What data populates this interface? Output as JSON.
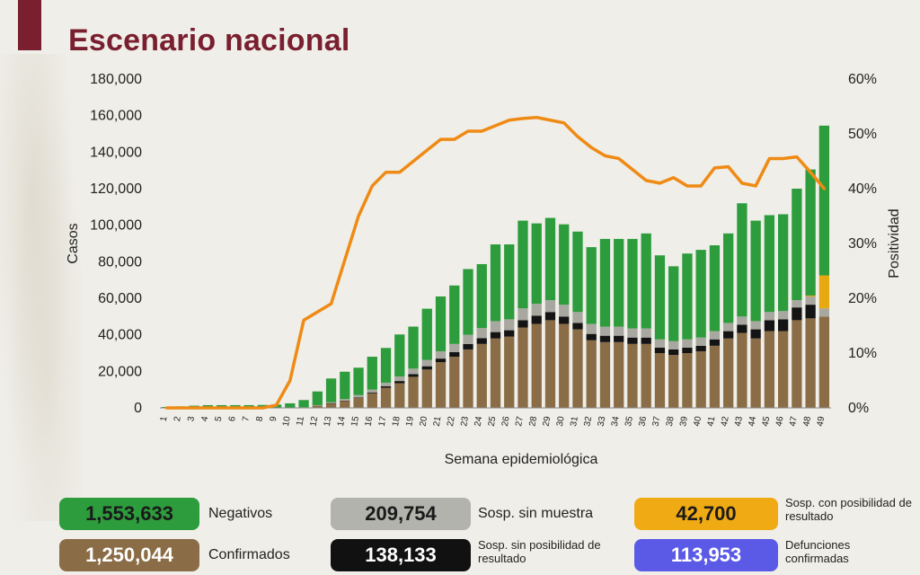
{
  "title": "Escenario nacional",
  "chart_data": {
    "type": "bar",
    "stacked": true,
    "xlabel": "Semana epidemiológica",
    "ylabel": "Casos",
    "y2label": "Positividad",
    "ylim": [
      0,
      180000
    ],
    "y2lim": [
      0,
      60
    ],
    "yticks": [
      "0",
      "20,000",
      "40,000",
      "60,000",
      "80,000",
      "100,000",
      "120,000",
      "140,000",
      "160,000",
      "180,000"
    ],
    "y2ticks": [
      "0%",
      "10%",
      "20%",
      "30%",
      "40%",
      "50%",
      "60%"
    ],
    "categories": [
      "1",
      "2",
      "3",
      "4",
      "5",
      "6",
      "7",
      "8",
      "9",
      "10",
      "11",
      "12",
      "13",
      "14",
      "15",
      "16",
      "17",
      "18",
      "19",
      "20",
      "21",
      "22",
      "23",
      "24",
      "25",
      "26",
      "27",
      "28",
      "29",
      "30",
      "31",
      "32",
      "33",
      "34",
      "35",
      "36",
      "37",
      "38",
      "39",
      "40",
      "41",
      "42",
      "43",
      "44",
      "45",
      "46",
      "47",
      "48",
      "49"
    ],
    "series": [
      {
        "name": "Confirmados",
        "color": "#8a6d46",
        "values": [
          0,
          0,
          0,
          0,
          0,
          0,
          0,
          0,
          0,
          0,
          200,
          1200,
          2500,
          3800,
          5500,
          8000,
          11000,
          13500,
          17000,
          21000,
          25000,
          28000,
          32000,
          35000,
          38000,
          39000,
          44000,
          46000,
          48000,
          46000,
          43000,
          37000,
          36000,
          36000,
          35000,
          35000,
          30000,
          29000,
          30000,
          31000,
          34000,
          38000,
          41000,
          38000,
          42000,
          42000,
          48000,
          49000,
          50000
        ]
      },
      {
        "name": "Sosp. sin posibilidad de resultado",
        "color": "#141414",
        "values": [
          0,
          0,
          0,
          0,
          0,
          0,
          0,
          0,
          0,
          0,
          0,
          0,
          100,
          200,
          300,
          500,
          800,
          1200,
          1500,
          1800,
          2000,
          2500,
          3000,
          3200,
          3500,
          3500,
          4000,
          4500,
          4500,
          4000,
          3500,
          3500,
          3500,
          3500,
          3500,
          3500,
          3000,
          3000,
          3000,
          3000,
          3500,
          4000,
          4500,
          5000,
          6000,
          6500,
          7000,
          7500,
          0
        ]
      },
      {
        "name": "Sosp. sin muestra",
        "color": "#a8a8a0",
        "values": [
          0,
          0,
          0,
          0,
          0,
          0,
          0,
          0,
          0,
          0,
          100,
          300,
          500,
          800,
          1200,
          1500,
          2000,
          2500,
          3000,
          3500,
          4000,
          4500,
          5000,
          5500,
          6000,
          6000,
          6500,
          6500,
          6500,
          6500,
          6000,
          5500,
          5000,
          5000,
          5000,
          5000,
          4500,
          4500,
          4500,
          4500,
          4500,
          4500,
          4500,
          4500,
          4500,
          4500,
          4000,
          4500,
          4500
        ]
      },
      {
        "name": "Sosp. con posibilidad de resultado",
        "color": "#e8a810",
        "values": [
          0,
          0,
          0,
          0,
          0,
          0,
          0,
          0,
          0,
          0,
          0,
          0,
          0,
          0,
          0,
          0,
          0,
          0,
          0,
          0,
          0,
          0,
          0,
          0,
          0,
          0,
          0,
          0,
          0,
          0,
          0,
          0,
          0,
          0,
          0,
          0,
          0,
          0,
          0,
          0,
          0,
          0,
          0,
          0,
          0,
          0,
          0,
          500,
          18000
        ]
      },
      {
        "name": "Negativos",
        "color": "#2d9c3c",
        "values": [
          500,
          800,
          1200,
          1500,
          1500,
          1500,
          1500,
          1600,
          1800,
          2500,
          4000,
          7500,
          13000,
          15000,
          15000,
          18000,
          19000,
          23000,
          23000,
          28000,
          30000,
          32000,
          36000,
          35000,
          42000,
          41000,
          48000,
          44000,
          45000,
          44000,
          44000,
          42000,
          48000,
          48000,
          49000,
          52000,
          46000,
          41000,
          47000,
          48000,
          47000,
          49000,
          62000,
          55000,
          53000,
          53000,
          61000,
          69000,
          82000
        ]
      }
    ],
    "line": {
      "name": "Positividad",
      "color": "#ef8a14",
      "values": [
        0,
        0,
        0,
        0,
        0,
        0,
        0,
        0,
        0.5,
        5,
        16,
        17.5,
        19,
        27,
        35,
        40.5,
        43,
        43,
        45,
        47,
        49,
        49,
        50.5,
        50.5,
        51.5,
        52.5,
        52.8,
        53,
        52.5,
        52,
        49.5,
        47.5,
        46,
        45.5,
        43.5,
        41.5,
        41,
        42,
        40.5,
        40.5,
        43.8,
        44,
        41,
        40.5,
        45.5,
        45.5,
        45.8,
        43,
        40
      ]
    }
  },
  "legend": [
    {
      "value": "1,553,633",
      "label": "Negativos",
      "color": "#2d9c3c",
      "text": "dark"
    },
    {
      "value": "209,754",
      "label": "Sosp. sin muestra",
      "color": "#b3b3ad",
      "text": "dark"
    },
    {
      "value": "42,700",
      "label": "Sosp. con posibilidad de resultado",
      "color": "#f0aa14",
      "text": "dark"
    },
    {
      "value": "1,250,044",
      "label": "Confirmados",
      "color": "#8a6d46",
      "text": "light"
    },
    {
      "value": "138,133",
      "label": "Sosp. sin posibilidad de resultado",
      "color": "#111111",
      "text": "light"
    },
    {
      "value": "113,953",
      "label": "Defunciones confirmadas",
      "color": "#5a5ae6",
      "text": "light"
    }
  ]
}
